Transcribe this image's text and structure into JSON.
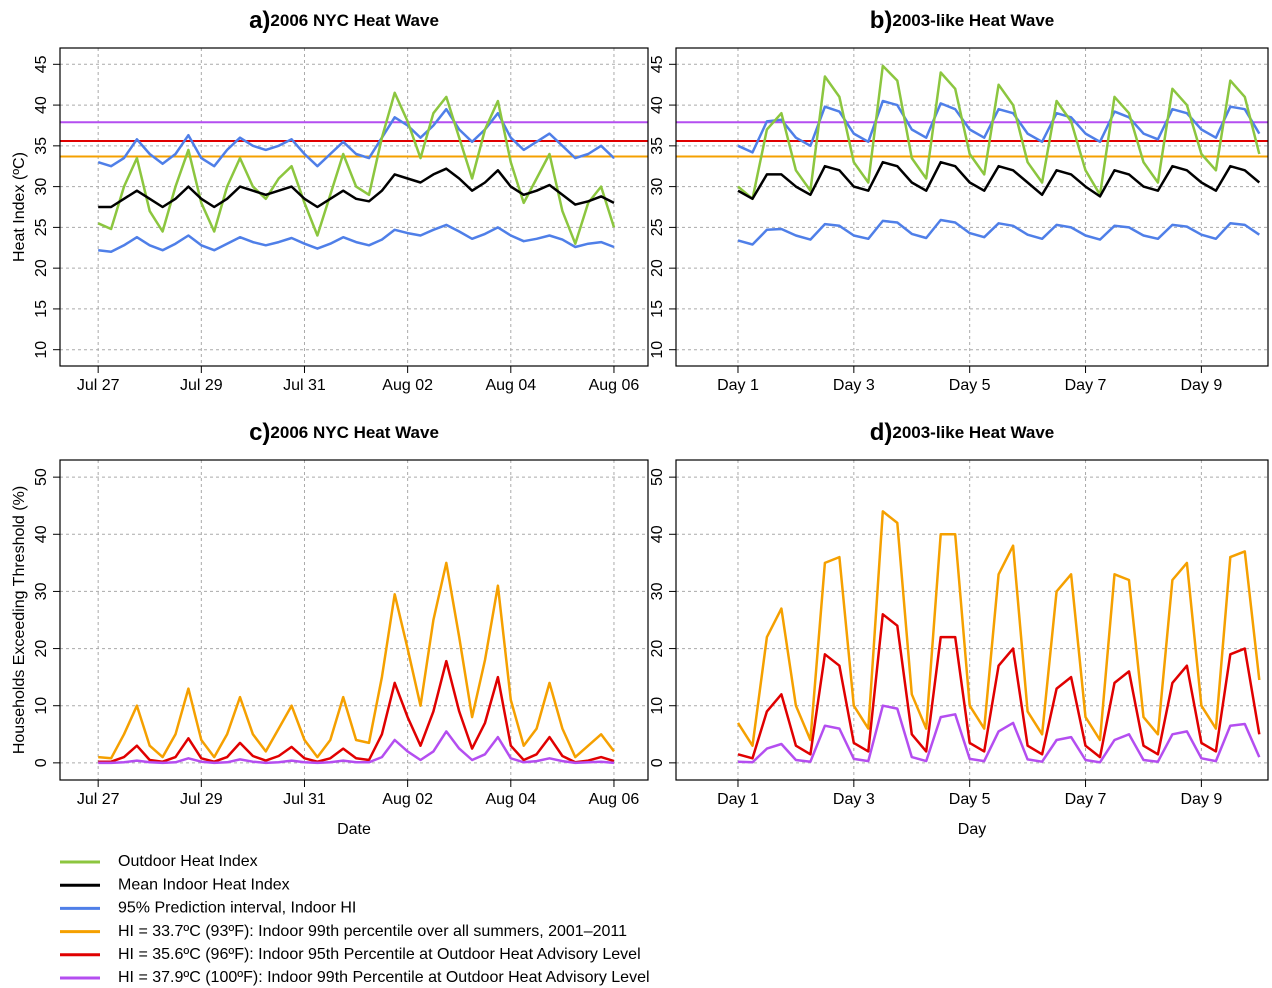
{
  "chart_data": [
    {
      "type": "line",
      "panel_label": "a)",
      "title": "2006 NYC Heat Wave",
      "ylabel": "Heat Index (ºC)",
      "x": [
        0,
        0.25,
        0.5,
        0.75,
        1,
        1.25,
        1.5,
        1.75,
        2,
        2.25,
        2.5,
        2.75,
        3,
        3.25,
        3.5,
        3.75,
        4,
        4.25,
        4.5,
        4.75,
        5,
        5.25,
        5.5,
        5.75,
        6,
        6.25,
        6.5,
        6.75,
        7,
        7.25,
        7.5,
        7.75,
        8,
        8.25,
        8.5,
        8.75,
        9,
        9.25,
        9.5,
        9.75,
        10
      ],
      "xlim": [
        -0.74,
        10.66
      ],
      "ylim": [
        8,
        47
      ],
      "xticks": [
        {
          "value": 0,
          "label": "Jul 27"
        },
        {
          "value": 2,
          "label": "Jul 29"
        },
        {
          "value": 4,
          "label": "Jul 31"
        },
        {
          "value": 6,
          "label": "Aug 02"
        },
        {
          "value": 8,
          "label": "Aug 04"
        },
        {
          "value": 10,
          "label": "Aug 06"
        }
      ],
      "yticks": [
        10,
        15,
        20,
        25,
        30,
        35,
        40,
        45
      ],
      "grid": true,
      "hlines": [
        {
          "value": 33.7,
          "color": "#f5a000"
        },
        {
          "value": 35.6,
          "color": "#e00000"
        },
        {
          "value": 37.9,
          "color": "#b44ef0"
        }
      ],
      "series": [
        {
          "color": "#4f7fe8",
          "values": [
            22.2,
            22,
            22.8,
            23.8,
            22.8,
            22.2,
            23,
            24,
            22.8,
            22.2,
            23,
            23.8,
            23.2,
            22.8,
            23.2,
            23.7,
            23,
            22.4,
            23,
            23.8,
            23.2,
            22.8,
            23.5,
            24.7,
            24.3,
            24,
            24.7,
            25.3,
            24.5,
            23.6,
            24.2,
            25,
            24,
            23.3,
            23.6,
            24,
            23.5,
            22.6,
            23,
            23.2,
            22.6
          ]
        },
        {
          "color": "#4f7fe8",
          "values": [
            33,
            32.5,
            33.5,
            35.8,
            34,
            32.8,
            34,
            36.3,
            33.5,
            32.5,
            34.5,
            36,
            35,
            34.5,
            35,
            35.8,
            34,
            32.5,
            34,
            35.5,
            34,
            33.5,
            36,
            38.5,
            37.5,
            36,
            37.5,
            39.5,
            37,
            35.5,
            37,
            39,
            36,
            34.5,
            35.5,
            36.5,
            35,
            33.5,
            34,
            35,
            33.5
          ]
        },
        {
          "color": "#8cc63f",
          "values": [
            25.5,
            24.8,
            30,
            33.5,
            27,
            24.5,
            30,
            34.5,
            28,
            24.5,
            30,
            33.5,
            30,
            28.5,
            31,
            32.5,
            28,
            24,
            29,
            34,
            30,
            29,
            36,
            41.5,
            38,
            33.5,
            39,
            41,
            36,
            31,
            37,
            40.5,
            33,
            28,
            31,
            34,
            27,
            23,
            28,
            30,
            25
          ]
        },
        {
          "color": "#000000",
          "values": [
            27.5,
            27.5,
            28.5,
            29.5,
            28.5,
            27.5,
            28.5,
            30,
            28.5,
            27.5,
            28.5,
            30,
            29.5,
            29,
            29.5,
            30,
            28.5,
            27.5,
            28.5,
            29.5,
            28.5,
            28.2,
            29.5,
            31.5,
            31,
            30.5,
            31.5,
            32.2,
            31,
            29.5,
            30.5,
            32,
            30,
            29,
            29.5,
            30.2,
            29,
            27.8,
            28.2,
            28.8,
            28
          ]
        }
      ]
    },
    {
      "type": "line",
      "panel_label": "b)",
      "title": "2003-like Heat Wave",
      "x": [
        1,
        1.25,
        1.5,
        1.75,
        2,
        2.25,
        2.5,
        2.75,
        3,
        3.25,
        3.5,
        3.75,
        4,
        4.25,
        4.5,
        4.75,
        5,
        5.25,
        5.5,
        5.75,
        6,
        6.25,
        6.5,
        6.75,
        7,
        7.25,
        7.5,
        7.75,
        8,
        8.25,
        8.5,
        8.75,
        9,
        9.25,
        9.5,
        9.75,
        10
      ],
      "xlim": [
        -0.07,
        10.15
      ],
      "ylim": [
        8,
        47
      ],
      "xticks": [
        {
          "value": 1,
          "label": "Day 1"
        },
        {
          "value": 3,
          "label": "Day 3"
        },
        {
          "value": 5,
          "label": "Day 5"
        },
        {
          "value": 7,
          "label": "Day 7"
        },
        {
          "value": 9,
          "label": "Day 9"
        }
      ],
      "yticks": [
        10,
        15,
        20,
        25,
        30,
        35,
        40,
        45
      ],
      "grid": true,
      "hlines": [
        {
          "value": 33.7,
          "color": "#f5a000"
        },
        {
          "value": 35.6,
          "color": "#e00000"
        },
        {
          "value": 37.9,
          "color": "#b44ef0"
        }
      ],
      "series": [
        {
          "color": "#4f7fe8",
          "values": [
            23.4,
            22.9,
            24.7,
            24.8,
            24,
            23.5,
            25.4,
            25.2,
            24,
            23.6,
            25.8,
            25.6,
            24.2,
            23.7,
            25.9,
            25.6,
            24.3,
            23.8,
            25.5,
            25.2,
            24.1,
            23.6,
            25.3,
            25,
            24,
            23.5,
            25.2,
            25,
            24,
            23.6,
            25.3,
            25.1,
            24.1,
            23.6,
            25.5,
            25.3,
            24.1
          ]
        },
        {
          "color": "#4f7fe8",
          "values": [
            35,
            34.2,
            38,
            38.2,
            36,
            35,
            39.8,
            39.2,
            36.5,
            35.5,
            40.5,
            40,
            37,
            36,
            40.2,
            39.5,
            37,
            36,
            39.5,
            39,
            36.5,
            35.5,
            39,
            38.5,
            36.5,
            35.5,
            39.2,
            38.5,
            36.5,
            35.8,
            39.5,
            39,
            37,
            36,
            39.8,
            39.5,
            36.5
          ]
        },
        {
          "color": "#8cc63f",
          "values": [
            30,
            28.5,
            37,
            39,
            32,
            29.5,
            43.5,
            41,
            33,
            30.5,
            44.8,
            43,
            33.5,
            31,
            44,
            42,
            34,
            31.5,
            42.5,
            40,
            33,
            30.5,
            40.5,
            38,
            32,
            29,
            41,
            39,
            33,
            30.5,
            42,
            40,
            34,
            32,
            43,
            41,
            34
          ]
        },
        {
          "color": "#000000",
          "values": [
            29.5,
            28.5,
            31.5,
            31.5,
            30,
            29,
            32.5,
            32,
            30,
            29.5,
            33,
            32.5,
            30.5,
            29.5,
            33,
            32.5,
            30.5,
            29.5,
            32.5,
            32,
            30.5,
            29,
            32,
            31.5,
            30,
            28.8,
            32,
            31.5,
            30,
            29.5,
            32.5,
            32,
            30.5,
            29.5,
            32.5,
            32,
            30.5
          ]
        }
      ]
    },
    {
      "type": "line",
      "panel_label": "c)",
      "title": "2006 NYC Heat Wave",
      "ylabel": "Households Exceeding Threshold (%)",
      "xlabel": "Date",
      "x": [
        0,
        0.25,
        0.5,
        0.75,
        1,
        1.25,
        1.5,
        1.75,
        2,
        2.25,
        2.5,
        2.75,
        3,
        3.25,
        3.5,
        3.75,
        4,
        4.25,
        4.5,
        4.75,
        5,
        5.25,
        5.5,
        5.75,
        6,
        6.25,
        6.5,
        6.75,
        7,
        7.25,
        7.5,
        7.75,
        8,
        8.25,
        8.5,
        8.75,
        9,
        9.25,
        9.5,
        9.75,
        10
      ],
      "xlim": [
        -0.74,
        10.66
      ],
      "ylim": [
        -3,
        53
      ],
      "xticks": [
        {
          "value": 0,
          "label": "Jul 27"
        },
        {
          "value": 2,
          "label": "Jul 29"
        },
        {
          "value": 4,
          "label": "Jul 31"
        },
        {
          "value": 6,
          "label": "Aug 02"
        },
        {
          "value": 8,
          "label": "Aug 04"
        },
        {
          "value": 10,
          "label": "Aug 06"
        }
      ],
      "yticks": [
        0,
        10,
        20,
        30,
        40,
        50
      ],
      "grid": true,
      "series": [
        {
          "color": "#f5a000",
          "values": [
            1,
            0.8,
            5,
            10,
            3,
            1,
            5,
            13,
            4,
            1,
            5,
            11.5,
            5,
            2,
            6,
            10,
            4,
            1,
            4,
            11.5,
            4,
            3.5,
            15,
            29.5,
            20,
            10,
            25,
            35,
            22,
            8,
            18,
            31,
            11,
            3,
            6,
            14,
            6,
            1,
            3,
            5,
            2
          ]
        },
        {
          "color": "#e00000",
          "values": [
            0.2,
            0.2,
            1,
            3,
            0.5,
            0.2,
            1,
            4.3,
            0.8,
            0.2,
            1,
            3.5,
            1.2,
            0.4,
            1.2,
            2.8,
            0.8,
            0.2,
            0.8,
            2.5,
            0.8,
            0.5,
            5,
            14,
            8,
            3,
            9,
            17.8,
            9,
            2.5,
            7,
            15,
            3,
            0.5,
            1.5,
            4.5,
            1.2,
            0.1,
            0.4,
            1,
            0.3
          ]
        },
        {
          "color": "#b44ef0",
          "values": [
            0,
            0,
            0.1,
            0.4,
            0.1,
            0,
            0.1,
            0.8,
            0.2,
            0,
            0.1,
            0.6,
            0.2,
            0,
            0.1,
            0.4,
            0.1,
            0,
            0.1,
            0.4,
            0.1,
            0.1,
            1,
            4,
            2,
            0.5,
            2,
            5.5,
            2.5,
            0.5,
            1.5,
            4.5,
            0.8,
            0.1,
            0.3,
            0.8,
            0.3,
            0,
            0.1,
            0.2,
            0
          ]
        }
      ]
    },
    {
      "type": "line",
      "panel_label": "d)",
      "title": "2003-like Heat Wave",
      "xlabel": "Day",
      "x": [
        1,
        1.25,
        1.5,
        1.75,
        2,
        2.25,
        2.5,
        2.75,
        3,
        3.25,
        3.5,
        3.75,
        4,
        4.25,
        4.5,
        4.75,
        5,
        5.25,
        5.5,
        5.75,
        6,
        6.25,
        6.5,
        6.75,
        7,
        7.25,
        7.5,
        7.75,
        8,
        8.25,
        8.5,
        8.75,
        9,
        9.25,
        9.5,
        9.75,
        10
      ],
      "xlim": [
        -0.07,
        10.15
      ],
      "ylim": [
        -3,
        53
      ],
      "xticks": [
        {
          "value": 1,
          "label": "Day 1"
        },
        {
          "value": 3,
          "label": "Day 3"
        },
        {
          "value": 5,
          "label": "Day 5"
        },
        {
          "value": 7,
          "label": "Day 7"
        },
        {
          "value": 9,
          "label": "Day 9"
        }
      ],
      "yticks": [
        0,
        10,
        20,
        30,
        40,
        50
      ],
      "grid": true,
      "series": [
        {
          "color": "#f5a000",
          "values": [
            7,
            3,
            22,
            27,
            10,
            4,
            35,
            36,
            10,
            6,
            44,
            42,
            12,
            6,
            40,
            40,
            10,
            6,
            33,
            38,
            9,
            5,
            30,
            33,
            8,
            4,
            33,
            32,
            8,
            5,
            32,
            35,
            10,
            6,
            36,
            37,
            14.5
          ]
        },
        {
          "color": "#e00000",
          "values": [
            1.5,
            0.8,
            9,
            12,
            3,
            1.5,
            19,
            17,
            3.5,
            2,
            26,
            24,
            5,
            2,
            22,
            22,
            3.5,
            2,
            17,
            20,
            3,
            1.5,
            13,
            15,
            3,
            1,
            14,
            16,
            3,
            1.5,
            14,
            17,
            3.5,
            2,
            19,
            20,
            5
          ]
        },
        {
          "color": "#b44ef0",
          "values": [
            0.2,
            0.1,
            2.5,
            3.3,
            0.5,
            0.2,
            6.5,
            6,
            0.7,
            0.3,
            10,
            9.5,
            1,
            0.3,
            8,
            8.5,
            0.7,
            0.3,
            5.5,
            7,
            0.6,
            0.2,
            4,
            4.5,
            0.5,
            0.1,
            4,
            5,
            0.5,
            0.2,
            5,
            5.5,
            0.8,
            0.3,
            6.5,
            6.8,
            1
          ]
        }
      ]
    }
  ],
  "legend": [
    {
      "name": "Outdoor Heat Index",
      "color": "#8cc63f"
    },
    {
      "name": "Mean Indoor Heat Index",
      "color": "#000000"
    },
    {
      "name": "95% Prediction interval, Indoor HI",
      "color": "#4f7fe8"
    },
    {
      "name": "HI = 33.7ºC (93ºF): Indoor 99th percentile over all summers, 2001–2011",
      "color": "#f5a000"
    },
    {
      "name": "HI = 35.6ºC (96ºF): Indoor 95th Percentile at Outdoor Heat Advisory Level",
      "color": "#e00000"
    },
    {
      "name": "HI = 37.9ºC (100ºF): Indoor 99th Percentile at Outdoor Heat Advisory Level",
      "color": "#b44ef0"
    }
  ]
}
